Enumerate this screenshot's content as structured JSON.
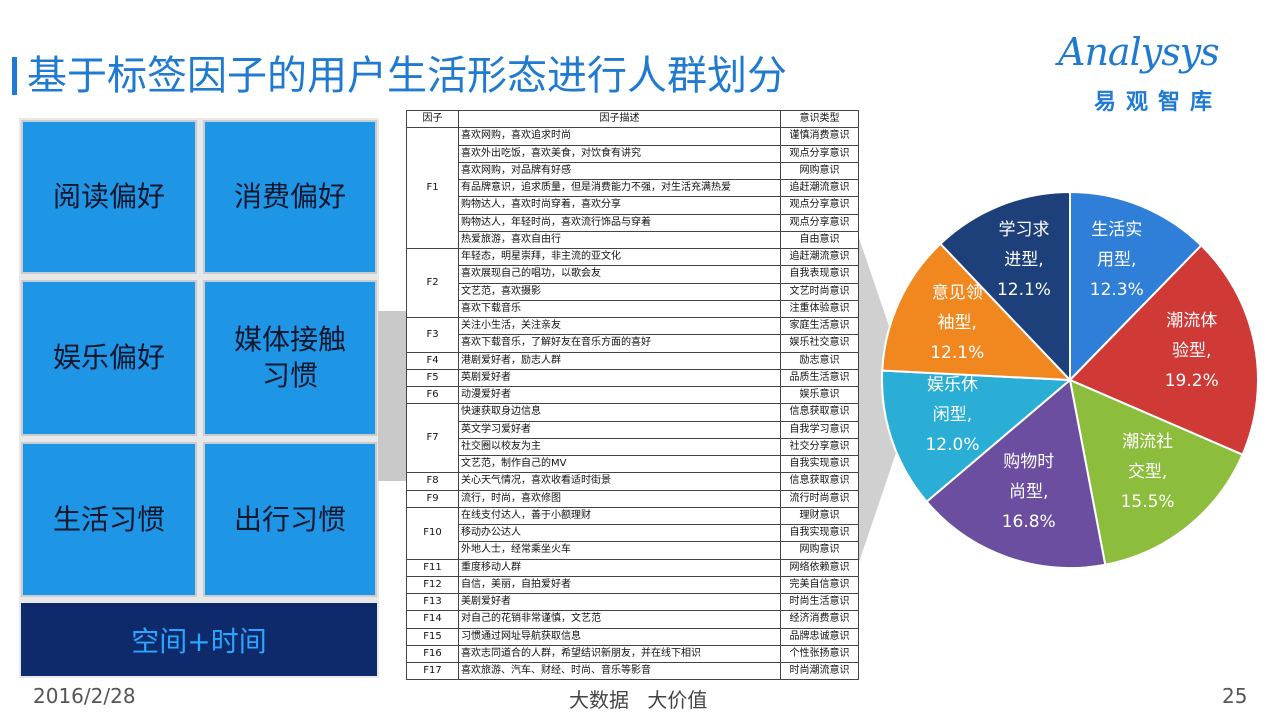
{
  "title": "基于标签因子的用户生活形态进行人群划分",
  "logo": {
    "en": "Analysys",
    "cn": "易观智库"
  },
  "tiles": [
    "阅读偏好",
    "消费偏好",
    "娱乐偏好",
    "媒体接触习惯",
    "生活习惯",
    "出行习惯"
  ],
  "space_time": "空间+时间",
  "table": {
    "headers": [
      "因子",
      "因子描述",
      "意识类型"
    ],
    "groups": [
      {
        "factor": "F1",
        "rows": [
          [
            "喜欢网购，喜欢追求时尚",
            "谨慎消费意识"
          ],
          [
            "喜欢外出吃饭，喜欢美食，对饮食有讲究",
            "观点分享意识"
          ],
          [
            "喜欢网购，对品牌有好感",
            "网购意识"
          ],
          [
            "有品牌意识，追求质量，但是消费能力不强，对生活充满热爱",
            "追赶潮流意识"
          ],
          [
            "购物达人，喜欢时尚穿着，喜欢分享",
            "观点分享意识"
          ],
          [
            "购物达人，年轻时尚，喜欢流行饰品与穿着",
            "观点分享意识"
          ],
          [
            "热爱旅游，喜欢自由行",
            "自由意识"
          ]
        ]
      },
      {
        "factor": "F2",
        "rows": [
          [
            "年轻态，明星崇拜，非主流的亚文化",
            "追赶潮流意识"
          ],
          [
            "喜欢展现自己的唱功，以歌会友",
            "自我表现意识"
          ],
          [
            "文艺范，喜欢摄影",
            "文艺时尚意识"
          ],
          [
            "喜欢下载音乐",
            "注重体验意识"
          ]
        ]
      },
      {
        "factor": "F3",
        "rows": [
          [
            "关注小生活，关注亲友",
            "家庭生活意识"
          ],
          [
            "喜欢下载音乐，了解好友在音乐方面的喜好",
            "娱乐社交意识"
          ]
        ]
      },
      {
        "factor": "F4",
        "rows": [
          [
            "港剧爱好者，励志人群",
            "励志意识"
          ]
        ]
      },
      {
        "factor": "F5",
        "rows": [
          [
            "英剧爱好者",
            "品质生活意识"
          ]
        ]
      },
      {
        "factor": "F6",
        "rows": [
          [
            "动漫爱好者",
            "娱乐意识"
          ]
        ]
      },
      {
        "factor": "F7",
        "rows": [
          [
            "快速获取身边信息",
            "信息获取意识"
          ],
          [
            "英文学习爱好者",
            "自我学习意识"
          ],
          [
            "社交圈以校友为主",
            "社交分享意识"
          ],
          [
            "文艺范，制作自己的MV",
            "自我实现意识"
          ]
        ]
      },
      {
        "factor": "F8",
        "rows": [
          [
            "关心天气情况，喜欢收看适时街景",
            "信息获取意识"
          ]
        ]
      },
      {
        "factor": "F9",
        "rows": [
          [
            "流行，时尚，喜欢修图",
            "流行时尚意识"
          ]
        ]
      },
      {
        "factor": "F10",
        "rows": [
          [
            "在线支付达人，善于小额理财",
            "理财意识"
          ],
          [
            "移动办公达人",
            "自我实现意识"
          ],
          [
            "外地人士，经常乘坐火车",
            "网购意识"
          ]
        ]
      },
      {
        "factor": "F11",
        "rows": [
          [
            "重度移动人群",
            "网络依赖意识"
          ]
        ]
      },
      {
        "factor": "F12",
        "rows": [
          [
            "自信，美丽，自拍爱好者",
            "完美自信意识"
          ]
        ]
      },
      {
        "factor": "F13",
        "rows": [
          [
            "美剧爱好者",
            "时尚生活意识"
          ]
        ]
      },
      {
        "factor": "F14",
        "rows": [
          [
            "对自己的花销非常谨慎，文艺范",
            "经济消费意识"
          ]
        ]
      },
      {
        "factor": "F15",
        "rows": [
          [
            "习惯通过网址导航获取信息",
            "品牌忠诚意识"
          ]
        ]
      },
      {
        "factor": "F16",
        "rows": [
          [
            "喜欢志同道合的人群，希望结识新朋友，并在线下相识",
            "个性张扬意识"
          ]
        ]
      },
      {
        "factor": "F17",
        "rows": [
          [
            "喜欢旅游、汽车、财经、时尚、音乐等影音",
            "时尚潮流意识"
          ]
        ]
      }
    ]
  },
  "chart_data": {
    "type": "pie",
    "title": "",
    "slices": [
      {
        "label": "生活实用型,",
        "value": 12.3,
        "display": "12.3%",
        "color": "#2f7fd8"
      },
      {
        "label": "潮流体验型,",
        "value": 19.2,
        "display": "19.2%",
        "color": "#cf3a37"
      },
      {
        "label": "潮流社交型,",
        "value": 15.5,
        "display": "15.5%",
        "color": "#8cbd3c"
      },
      {
        "label": "购物时尚型,",
        "value": 16.8,
        "display": "16.8%",
        "color": "#6b4ea0"
      },
      {
        "label": "娱乐休闲型,",
        "value": 12.0,
        "display": "12.0%",
        "color": "#2aaed6"
      },
      {
        "label": "意见领袖型,",
        "value": 12.1,
        "display": "12.1%",
        "color": "#f0871f"
      },
      {
        "label": "学习求进型,",
        "value": 12.1,
        "display": "12.1%",
        "color": "#1d3f7a"
      }
    ],
    "label_lines": [
      [
        "生活实",
        "用型,",
        "12.3%"
      ],
      [
        "潮流体",
        "验型,",
        "19.2%"
      ],
      [
        "潮流社",
        "交型,",
        "15.5%"
      ],
      [
        "购物时",
        "尚型,",
        "16.8%"
      ],
      [
        "娱乐休",
        "闲型,",
        "12.0%"
      ],
      [
        "意见领",
        "袖型,",
        "12.1%"
      ],
      [
        "学习求",
        "进型,",
        "12.1%"
      ]
    ]
  },
  "footer": {
    "date": "2016/2/28",
    "center": "大数据 大价值",
    "page": "25"
  }
}
